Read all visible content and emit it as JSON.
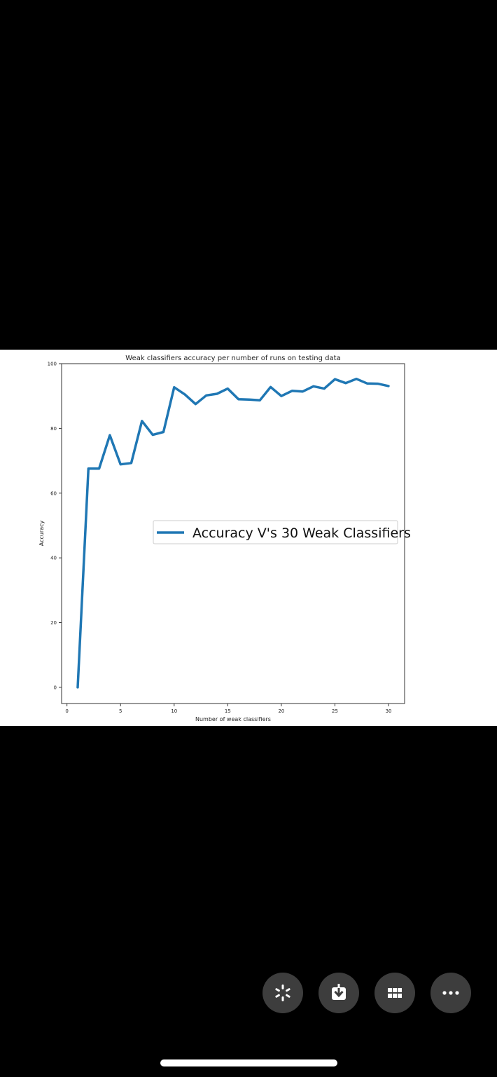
{
  "chart_data": {
    "type": "line",
    "title": "Weak classifiers accuracy per number of runs on testing data",
    "xlabel": "Number of weak classifiers",
    "ylabel": "Accuracy",
    "xlim": [
      -0.5,
      31.5
    ],
    "ylim": [
      -5,
      100
    ],
    "xticks": [
      0,
      5,
      10,
      15,
      20,
      25,
      30
    ],
    "yticks": [
      0,
      20,
      40,
      60,
      80,
      100
    ],
    "grid": false,
    "legend_position": "center-right",
    "series": [
      {
        "name": "Accuracy V's 30 Weak Classifiers",
        "color": "#1f77b4",
        "x": [
          1,
          2,
          3,
          4,
          5,
          6,
          7,
          8,
          9,
          10,
          11,
          12,
          13,
          14,
          15,
          16,
          17,
          18,
          19,
          20,
          21,
          22,
          23,
          24,
          25,
          26,
          27,
          28,
          29,
          30
        ],
        "y": [
          0,
          67.6,
          67.6,
          77.9,
          68.9,
          69.3,
          82.3,
          78.0,
          78.9,
          92.7,
          90.5,
          87.5,
          90.2,
          90.7,
          92.3,
          89.0,
          88.9,
          88.7,
          92.8,
          90.0,
          91.6,
          91.4,
          93.0,
          92.3,
          95.2,
          94.0,
          95.3,
          93.9,
          93.8,
          93.1
        ]
      }
    ]
  },
  "toolbar": {
    "icons": [
      "live-text-icon",
      "save-download-icon",
      "grid-apps-icon",
      "more-icon"
    ]
  }
}
